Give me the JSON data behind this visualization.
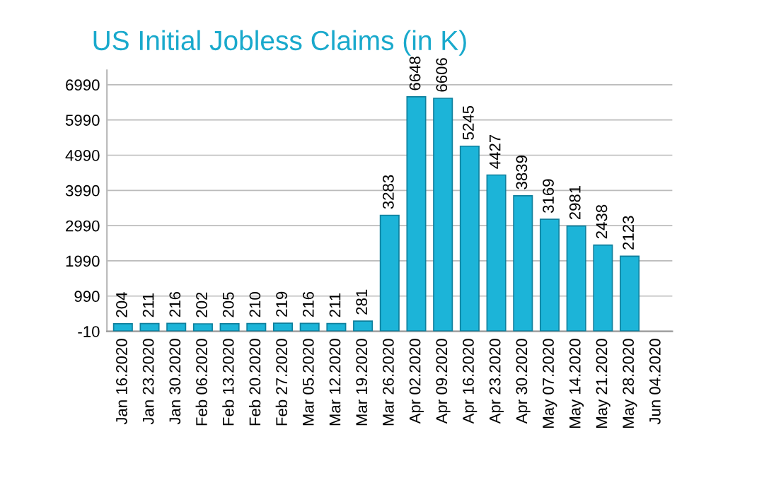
{
  "chart_data": {
    "type": "bar",
    "title": "US Initial Jobless Claims (in K)",
    "categories": [
      "Jan 16.2020",
      "Jan 23.2020",
      "Jan 30.2020",
      "Feb 06.2020",
      "Feb 13.2020",
      "Feb 20.2020",
      "Feb 27.2020",
      "Mar 05.2020",
      "Mar 12.2020",
      "Mar 19.2020",
      "Mar 26.2020",
      "Apr 02.2020",
      "Apr 09.2020",
      "Apr 16.2020",
      "Apr 23.2020",
      "Apr 30.2020",
      "May 07.2020",
      "May 14.2020",
      "May 21.2020",
      "May 28.2020",
      "Jun 04.2020"
    ],
    "values": [
      204,
      211,
      216,
      202,
      205,
      210,
      219,
      216,
      211,
      281,
      3283,
      6648,
      6606,
      5245,
      4427,
      3839,
      3169,
      2981,
      2438,
      2123,
      null
    ],
    "color": "#1cb4d8",
    "data_labels": true,
    "grid": "y",
    "ylim": [
      -10,
      7400
    ],
    "yticks": [
      -10,
      990,
      1990,
      2990,
      3990,
      4990,
      5990,
      6990
    ]
  }
}
